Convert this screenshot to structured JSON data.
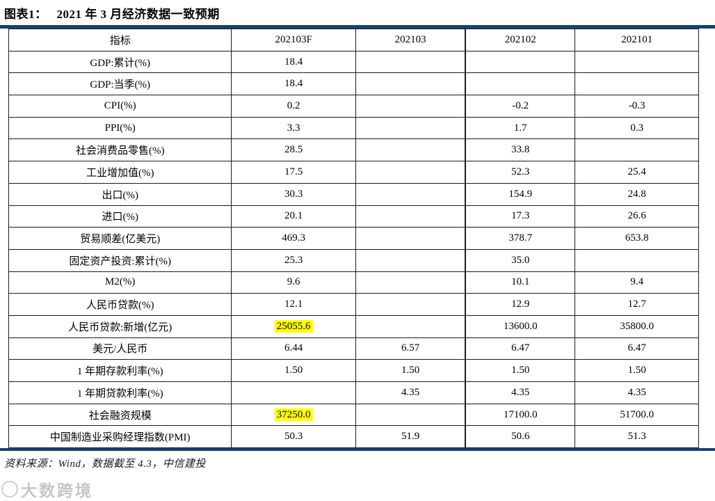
{
  "colors": {
    "accent": "#17436B",
    "highlight": "#FFFF00"
  },
  "title": {
    "prefix": "图表1：",
    "text": "2021 年 3 月经济数据一致预期"
  },
  "table": {
    "columns": [
      "指标",
      "202103F",
      "202103",
      "202102",
      "202101"
    ],
    "rows": [
      {
        "cells": [
          "GDP:累计(%)",
          "18.4",
          "",
          "",
          ""
        ]
      },
      {
        "cells": [
          "GDP:当季(%)",
          "18.4",
          "",
          "",
          ""
        ]
      },
      {
        "cells": [
          "CPI(%)",
          "0.2",
          "",
          "-0.2",
          "-0.3"
        ]
      },
      {
        "cells": [
          "PPI(%)",
          "3.3",
          "",
          "1.7",
          "0.3"
        ]
      },
      {
        "cells": [
          "社会消费品零售(%)",
          "28.5",
          "",
          "33.8",
          ""
        ]
      },
      {
        "cells": [
          "工业增加值(%)",
          "17.5",
          "",
          "52.3",
          "25.4"
        ]
      },
      {
        "cells": [
          "出口(%)",
          "30.3",
          "",
          "154.9",
          "24.8"
        ]
      },
      {
        "cells": [
          "进口(%)",
          "20.1",
          "",
          "17.3",
          "26.6"
        ]
      },
      {
        "cells": [
          "贸易顺差(亿美元)",
          "469.3",
          "",
          "378.7",
          "653.8"
        ]
      },
      {
        "cells": [
          "固定资产投资:累计(%)",
          "25.3",
          "",
          "35.0",
          ""
        ]
      },
      {
        "cells": [
          "M2(%)",
          "9.6",
          "",
          "10.1",
          "9.4"
        ]
      },
      {
        "cells": [
          "人民币贷款(%)",
          "12.1",
          "",
          "12.9",
          "12.7"
        ]
      },
      {
        "cells": [
          "人民币贷款:新增(亿元)",
          "25055.6",
          "",
          "13600.0",
          "35800.0"
        ],
        "highlight": [
          1
        ]
      },
      {
        "cells": [
          "美元/人民币",
          "6.44",
          "6.57",
          "6.47",
          "6.47"
        ]
      },
      {
        "cells": [
          "1 年期存款利率(%)",
          "1.50",
          "1.50",
          "1.50",
          "1.50"
        ]
      },
      {
        "cells": [
          "1 年期贷款利率(%)",
          "",
          "4.35",
          "4.35",
          "4.35"
        ]
      },
      {
        "cells": [
          "社会融资规模",
          "37250.0",
          "",
          "17100.0",
          "51700.0"
        ],
        "highlight": [
          1
        ]
      },
      {
        "cells": [
          "中国制造业采购经理指数(PMI)",
          "50.3",
          "51.9",
          "50.6",
          "51.3"
        ]
      }
    ]
  },
  "footer": {
    "source": "资料来源：Wind，数据截至 4.3，中信建投"
  },
  "watermark": {
    "text": "大数跨境"
  }
}
